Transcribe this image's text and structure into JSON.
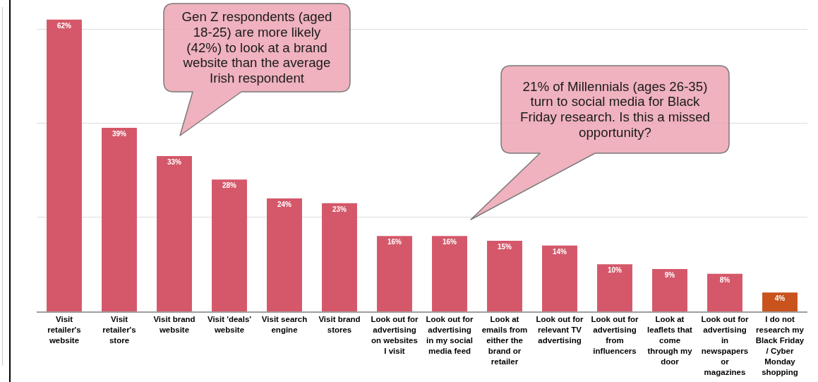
{
  "chart_data": {
    "type": "bar",
    "categories": [
      "Visit retailer's website",
      "Visit retailer's store",
      "Visit brand website",
      "Visit 'deals' website",
      "Visit search engine",
      "Visit brand stores",
      "Look out for advertising on websites I visit",
      "Look out for advertising in my social media feed",
      "Look at emails from either the brand or retailer",
      "Look out for relevant TV advertising",
      "Look out for advertising from influencers",
      "Look at leaflets that come through my door",
      "Look out for advertising in newspapers or magazines",
      "I do not research my Black Friday / Cyber Monday shopping"
    ],
    "values": [
      62,
      39,
      33,
      28,
      24,
      23,
      16,
      16,
      15,
      14,
      10,
      9,
      8,
      4
    ],
    "colors": [
      "#d4586a",
      "#d4586a",
      "#d4586a",
      "#d4586a",
      "#d4586a",
      "#d4586a",
      "#d4586a",
      "#d4586a",
      "#d4586a",
      "#d4586a",
      "#d4586a",
      "#d4586a",
      "#d4586a",
      "#c8531c"
    ],
    "value_labels": [
      "62%",
      "39%",
      "33%",
      "28%",
      "24%",
      "23%",
      "16%",
      "16%",
      "15%",
      "14%",
      "10%",
      "9%",
      "8%",
      "4%"
    ],
    "yticks": [
      {
        "value": 0,
        "label": null
      },
      {
        "value": 20,
        "label": null
      },
      {
        "value": 40,
        "label": null
      },
      {
        "value": 60,
        "label": null
      }
    ],
    "tick_labels": "x",
    "grid": "y",
    "annotations": [
      "Gen Z respondents (aged 18-25) are more likely (42%) to look at a brand website than the average Irish respondent",
      "21% of Millennials (ages 26-35) turn to social media for Black Friday research. Is this a missed opportunity?"
    ]
  }
}
